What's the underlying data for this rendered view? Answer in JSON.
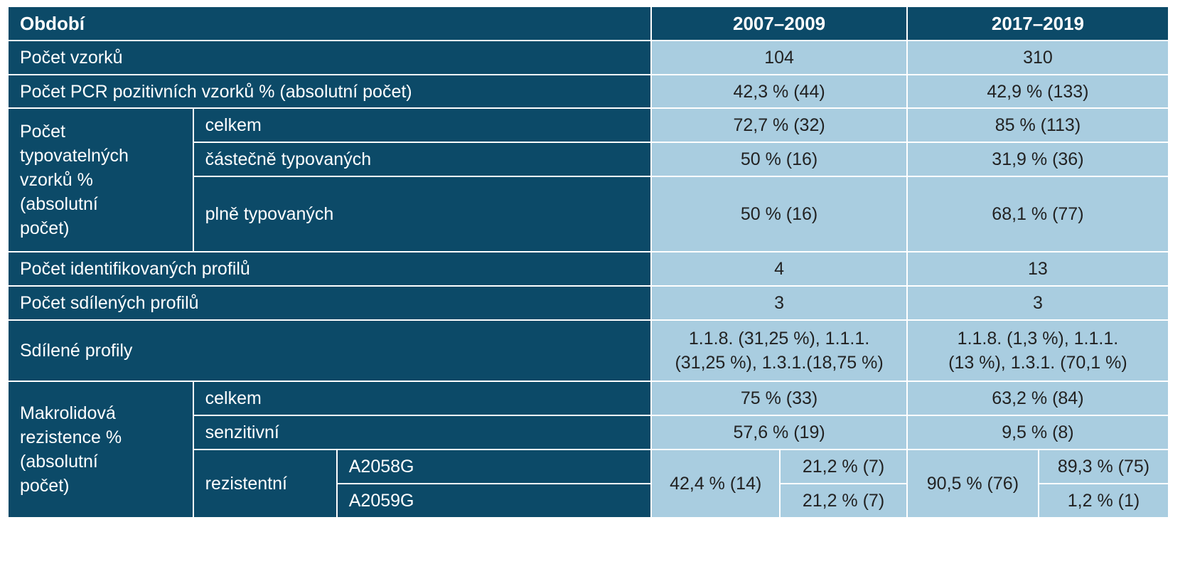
{
  "header": {
    "period": "Období",
    "col1": "2007–2009",
    "col2": "2017–2019"
  },
  "rows": {
    "samples": {
      "label": "Počet vzorků",
      "v1": "104",
      "v2": "310"
    },
    "pcr_positive": {
      "label": "Počet PCR pozitivních vzorků % (absolutní počet)",
      "v1": "42,3 % (44)",
      "v2": "42,9 % (133)"
    },
    "typeable": {
      "group_label_lines": [
        "Počet",
        "typovatelných",
        "vzorků %",
        "(absolutní",
        "počet)"
      ],
      "total": {
        "label": "celkem",
        "v1": "72,7 % (32)",
        "v2": "85 % (113)"
      },
      "partial": {
        "label": "částečně typovaných",
        "v1": "50 % (16)",
        "v2": "31,9 % (36)"
      },
      "full": {
        "label": "plně typovaných",
        "v1": "50 % (16)",
        "v2": "68,1 % (77)"
      }
    },
    "identified_profiles": {
      "label": "Počet identifikovaných profilů",
      "v1": "4",
      "v2": "13"
    },
    "shared_profiles_count": {
      "label": "Počet sdílených profilů",
      "v1": "3",
      "v2": "3"
    },
    "shared_profiles": {
      "label": "Sdílené profily",
      "v1_lines": [
        "1.1.8. (31,25 %), 1.1.1.",
        "(31,25 %), 1.3.1.(18,75 %)"
      ],
      "v2_lines": [
        "1.1.8. (1,3 %), 1.1.1.",
        "(13 %), 1.3.1. (70,1 %)"
      ]
    },
    "macrolide": {
      "group_label_lines": [
        "Makrolidová",
        "rezistence %",
        "(absolutní",
        "počet)"
      ],
      "total": {
        "label": "celkem",
        "v1": "75 % (33)",
        "v2": "63,2 % (84)"
      },
      "sensitive": {
        "label": "senzitivní",
        "v1": "57,6 % (19)",
        "v2": "9,5 % (8)"
      },
      "resistant": {
        "label": "rezistentní",
        "v1_total": "42,4 % (14)",
        "v2_total": "90,5 % (76)",
        "mutations": [
          {
            "label": "A2058G",
            "v1": "21,2 % (7)",
            "v2": "89,3 % (75)"
          },
          {
            "label": "A2059G",
            "v1": "21,2 % (7)",
            "v2": "1,2 % (1)"
          }
        ]
      }
    }
  }
}
